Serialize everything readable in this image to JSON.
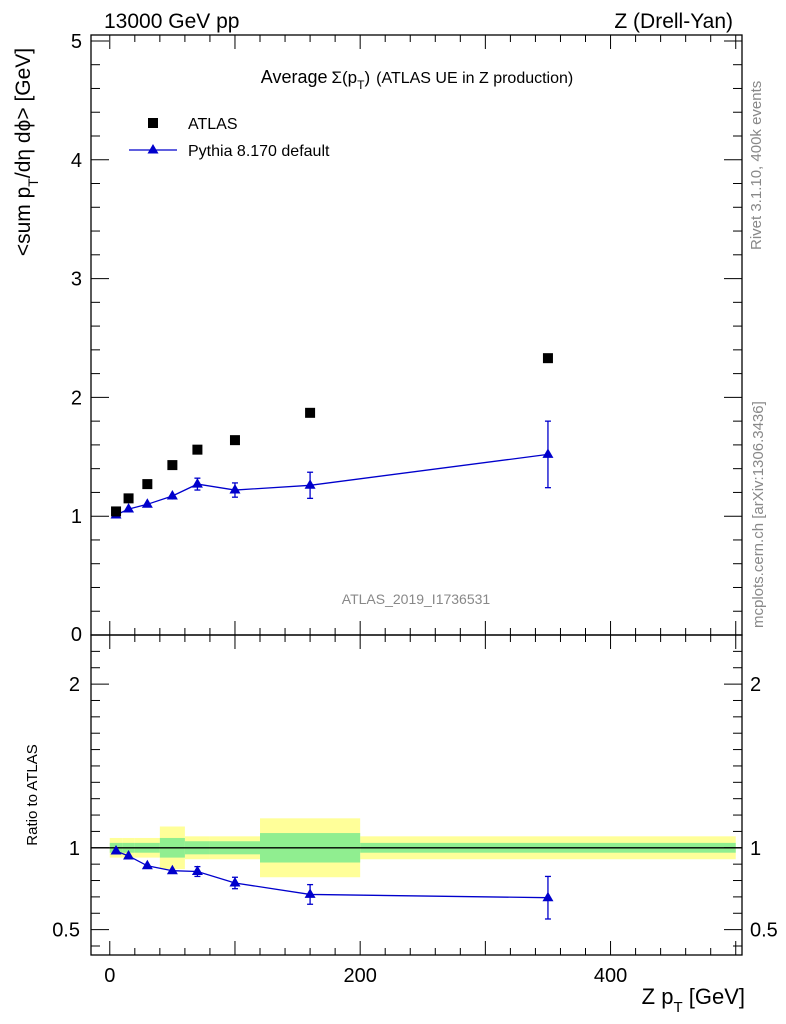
{
  "header": {
    "left": "13000 GeV pp",
    "right": "Z (Drell-Yan)"
  },
  "side_labels": {
    "rivet": "Rivet 3.1.10,  400k events",
    "mcplots": "mcplots.cern.ch [arXiv:1306.3436]"
  },
  "analysis_id": "ATLAS_2019_I1736531",
  "colors": {
    "mc": "#0000cc",
    "band_stat": "#90ee90",
    "band_total": "#ffff99",
    "data": "#000000"
  },
  "chart_data": [
    {
      "type": "scatter",
      "panel": "main",
      "title_prefix": "Average",
      "title_math": "Σ(p",
      "title_sub": "T",
      "title_close": ")",
      "title_suffix": "(ATLAS UE in Z production)",
      "ylabel_pre": "<sum p",
      "ylabel_sub": "T",
      "ylabel_post": "/dη dϕ> [GeV]",
      "xlim": [
        -15,
        505
      ],
      "ylim": [
        0,
        5.05
      ],
      "y_ticks": [
        "0",
        "1",
        "2",
        "3",
        "4",
        "5"
      ],
      "y_tick_values": [
        0,
        1,
        2,
        3,
        4,
        5
      ],
      "legend": [
        {
          "name": "ATLAS",
          "marker": "square"
        },
        {
          "name": "Pythia 8.170 default",
          "marker": "triangle-line"
        }
      ],
      "series": [
        {
          "name": "ATLAS",
          "x": [
            5,
            15,
            30,
            50,
            70,
            100,
            160,
            350
          ],
          "y": [
            1.04,
            1.15,
            1.27,
            1.43,
            1.56,
            1.64,
            1.87,
            2.33
          ]
        },
        {
          "name": "Pythia 8.170 default",
          "x": [
            5,
            15,
            30,
            50,
            70,
            100,
            160,
            350
          ],
          "y": [
            1.01,
            1.06,
            1.1,
            1.17,
            1.27,
            1.22,
            1.26,
            1.52
          ],
          "err": [
            0.02,
            0.02,
            0.02,
            0.03,
            0.05,
            0.06,
            0.11,
            0.28
          ]
        }
      ]
    },
    {
      "type": "line",
      "panel": "ratio",
      "ylabel": "Ratio to ATLAS",
      "xlabel_pre": "Z p",
      "xlabel_sub": "T",
      "xlabel_post": " [GeV]",
      "xlim": [
        -15,
        505
      ],
      "ylim": [
        0.345,
        2.3
      ],
      "x_ticks": [
        "0",
        "200",
        "400"
      ],
      "x_tick_values": [
        0,
        200,
        400
      ],
      "y_ticks": [
        "0.5",
        "1",
        "2"
      ],
      "y_tick_values": [
        0.5,
        1,
        2
      ],
      "bins": [
        {
          "lo": 0,
          "hi": 10,
          "stat": 0.03,
          "total": 0.06
        },
        {
          "lo": 10,
          "hi": 20,
          "stat": 0.03,
          "total": 0.06
        },
        {
          "lo": 20,
          "hi": 40,
          "stat": 0.03,
          "total": 0.06
        },
        {
          "lo": 40,
          "hi": 60,
          "stat": 0.06,
          "total": 0.13
        },
        {
          "lo": 60,
          "hi": 80,
          "stat": 0.04,
          "total": 0.07
        },
        {
          "lo": 80,
          "hi": 120,
          "stat": 0.04,
          "total": 0.07
        },
        {
          "lo": 120,
          "hi": 200,
          "stat": 0.09,
          "total": 0.18
        },
        {
          "lo": 200,
          "hi": 500,
          "stat": 0.03,
          "total": 0.07
        }
      ],
      "series": [
        {
          "name": "Pythia 8.170 default / ATLAS",
          "x": [
            5,
            15,
            30,
            50,
            70,
            100,
            160,
            350
          ],
          "y": [
            0.98,
            0.95,
            0.89,
            0.86,
            0.855,
            0.785,
            0.715,
            0.695
          ],
          "err": [
            0.015,
            0.015,
            0.015,
            0.02,
            0.03,
            0.035,
            0.06,
            0.13
          ]
        }
      ]
    }
  ]
}
